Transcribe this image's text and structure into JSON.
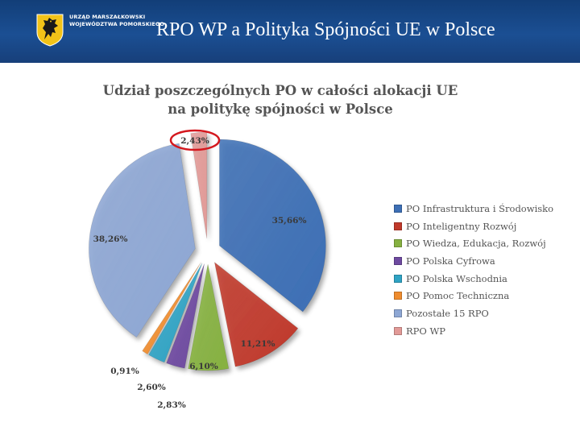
{
  "header": {
    "org_line1": "URZĄD MARSZAŁKOWSKI",
    "org_line2": "WOJEWÓDZTWA POMORSKIEGO",
    "title": "RPO WP a Polityka Spójności UE w Polsce",
    "logo_icon": "griffin-coat-of-arms-icon",
    "colors": {
      "bar": "#1b4f93",
      "logo_shield": "#f2c318"
    }
  },
  "chart_data": {
    "type": "pie",
    "title_line1": "Udział poszczególnych PO w całości alokacji UE",
    "title_line2": "na politykę spójności w Polsce",
    "legend_position": "right",
    "slices": [
      {
        "label": "PO Infrastruktura i Środowisko",
        "value": 35.66,
        "value_label": "35,66%",
        "color": "#3d6fb5"
      },
      {
        "label": "PO Inteligentny Rozwój",
        "value": 11.21,
        "value_label": "11,21%",
        "color": "#c0392b"
      },
      {
        "label": "PO Wiedza, Edukacja, Rozwój",
        "value": 6.1,
        "value_label": "6,10%",
        "color": "#86b141"
      },
      {
        "label": "PO Polska Cyfrowa",
        "value": 2.83,
        "value_label": "2,83%",
        "color": "#6e4aa0"
      },
      {
        "label": "PO Polska Wschodnia",
        "value": 2.6,
        "value_label": "2,60%",
        "color": "#2fa3c4"
      },
      {
        "label": "PO Pomoc Techniczna",
        "value": 0.91,
        "value_label": "0,91%",
        "color": "#ef8c2e"
      },
      {
        "label": "Pozostałe 15 RPO",
        "value": 38.26,
        "value_label": "38,26%",
        "color": "#8ea7d4"
      },
      {
        "label": "RPO WP",
        "value": 2.43,
        "value_label": "2,43%",
        "color": "#e29a97",
        "highlighted": true
      }
    ],
    "highlight_color": "#d4181e"
  }
}
